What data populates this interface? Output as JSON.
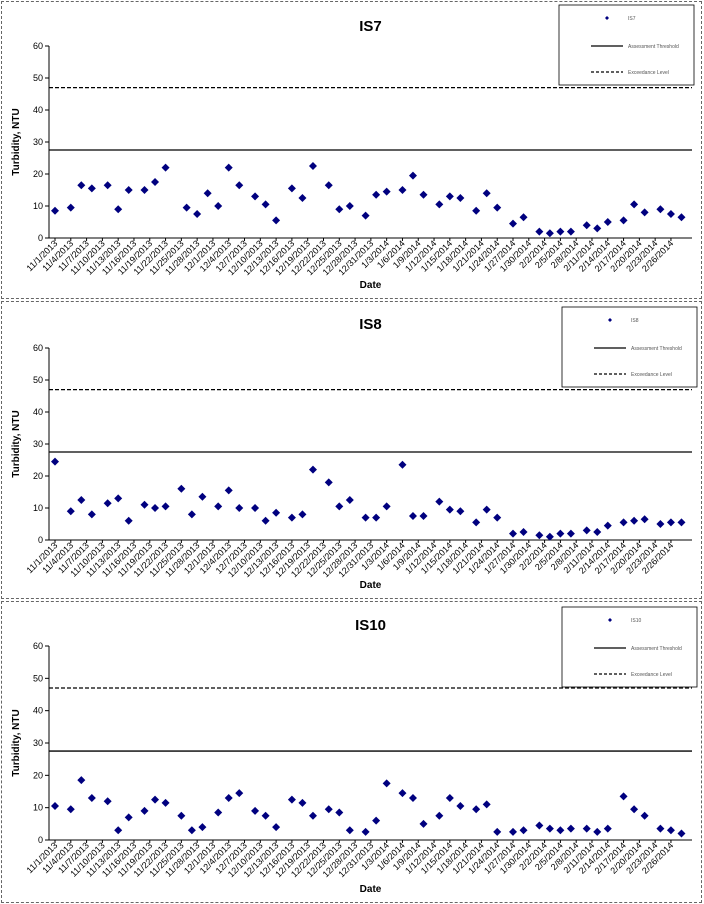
{
  "colors": {
    "marker": "#00007f",
    "line": "#000000",
    "border": "#666666"
  },
  "chart_data": [
    {
      "type": "scatter",
      "title": "IS7",
      "xlabel": "Date",
      "ylabel": "Turbidity, NTU",
      "ylim": [
        0,
        60
      ],
      "yticks": [
        0,
        10,
        20,
        30,
        40,
        50,
        60
      ],
      "xlim": [
        "2013-11-01",
        "2014-03-02"
      ],
      "xtick_labels": [
        "11/1/2013",
        "11/4/2013",
        "11/7/2013",
        "11/10/2013",
        "11/13/2013",
        "11/16/2013",
        "11/19/2013",
        "11/22/2013",
        "11/25/2013",
        "11/28/2013",
        "12/1/2013",
        "12/4/2013",
        "12/7/2013",
        "12/10/2013",
        "12/13/2013",
        "12/16/2013",
        "12/19/2013",
        "12/22/2013",
        "12/25/2013",
        "12/28/2013",
        "12/31/2013",
        "1/3/2014",
        "1/6/2014",
        "1/9/2014",
        "1/12/2014",
        "1/15/2014",
        "1/18/2014",
        "1/21/2014",
        "1/24/2014",
        "1/27/2014",
        "1/30/2014",
        "2/2/2014",
        "2/5/2014",
        "2/8/2014",
        "2/11/2014",
        "2/14/2014",
        "2/17/2014",
        "2/20/2014",
        "2/23/2014",
        "2/26/2014"
      ],
      "grid": false,
      "legend_position": "top-right",
      "legend": [
        "IS7",
        "Assessment Threshold",
        "Exceedance Level"
      ],
      "series": [
        {
          "name": "IS7",
          "style": "marker",
          "points": [
            [
              "11/1/2013",
              8.5
            ],
            [
              "11/4/2013",
              9.5
            ],
            [
              "11/6/2013",
              16.5
            ],
            [
              "11/8/2013",
              15.5
            ],
            [
              "11/11/2013",
              16.5
            ],
            [
              "11/13/2013",
              9
            ],
            [
              "11/15/2013",
              15
            ],
            [
              "11/18/2013",
              15
            ],
            [
              "11/20/2013",
              17.5
            ],
            [
              "11/22/2013",
              22
            ],
            [
              "11/26/2013",
              9.5
            ],
            [
              "11/28/2013",
              7.5
            ],
            [
              "11/30/2013",
              14
            ],
            [
              "12/2/2013",
              10
            ],
            [
              "12/4/2013",
              22
            ],
            [
              "12/6/2013",
              16.5
            ],
            [
              "12/9/2013",
              13
            ],
            [
              "12/11/2013",
              10.5
            ],
            [
              "12/13/2013",
              5.5
            ],
            [
              "12/16/2013",
              15.5
            ],
            [
              "12/18/2013",
              12.5
            ],
            [
              "12/20/2013",
              22.5
            ],
            [
              "12/23/2013",
              16.5
            ],
            [
              "12/25/2013",
              9
            ],
            [
              "12/27/2013",
              10
            ],
            [
              "12/30/2013",
              7
            ],
            [
              "1/1/2014",
              13.5
            ],
            [
              "1/3/2014",
              14.5
            ],
            [
              "1/6/2014",
              15
            ],
            [
              "1/8/2014",
              19.5
            ],
            [
              "1/10/2014",
              13.5
            ],
            [
              "1/13/2014",
              10.5
            ],
            [
              "1/15/2014",
              13
            ],
            [
              "1/17/2014",
              12.5
            ],
            [
              "1/20/2014",
              8.5
            ],
            [
              "1/22/2014",
              14
            ],
            [
              "1/24/2014",
              9.5
            ],
            [
              "1/27/2014",
              4.5
            ],
            [
              "1/29/2014",
              6.5
            ],
            [
              "2/1/2014",
              2
            ],
            [
              "2/3/2014",
              1.5
            ],
            [
              "2/5/2014",
              2
            ],
            [
              "2/7/2014",
              2
            ],
            [
              "2/10/2014",
              4
            ],
            [
              "2/12/2014",
              3
            ],
            [
              "2/14/2014",
              5
            ],
            [
              "2/17/2014",
              5.5
            ],
            [
              "2/19/2014",
              10.5
            ],
            [
              "2/21/2014",
              8
            ],
            [
              "2/24/2014",
              9
            ],
            [
              "2/26/2014",
              7.5
            ],
            [
              "2/28/2014",
              6.5
            ]
          ]
        },
        {
          "name": "Assessment Threshold",
          "style": "solid",
          "value": 27.5
        },
        {
          "name": "Exceedance Level",
          "style": "dashed",
          "value": 47
        }
      ]
    },
    {
      "type": "scatter",
      "title": "IS8",
      "xlabel": "Date",
      "ylabel": "Turbidity, NTU",
      "ylim": [
        0,
        60
      ],
      "yticks": [
        0,
        10,
        20,
        30,
        40,
        50,
        60
      ],
      "xlim": [
        "2013-11-01",
        "2014-03-02"
      ],
      "xtick_labels": [
        "11/1/2013",
        "11/4/2013",
        "11/7/2013",
        "11/10/2013",
        "11/13/2013",
        "11/16/2013",
        "11/19/2013",
        "11/22/2013",
        "11/25/2013",
        "11/28/2013",
        "12/1/2013",
        "12/4/2013",
        "12/7/2013",
        "12/10/2013",
        "12/13/2013",
        "12/16/2013",
        "12/19/2013",
        "12/22/2013",
        "12/25/2013",
        "12/28/2013",
        "12/31/2013",
        "1/3/2014",
        "1/6/2014",
        "1/9/2014",
        "1/12/2014",
        "1/15/2014",
        "1/18/2014",
        "1/21/2014",
        "1/24/2014",
        "1/27/2014",
        "1/30/2014",
        "2/2/2014",
        "2/5/2014",
        "2/8/2014",
        "2/11/2014",
        "2/14/2014",
        "2/17/2014",
        "2/20/2014",
        "2/23/2014",
        "2/26/2014"
      ],
      "grid": false,
      "legend_position": "top-right",
      "legend": [
        "IS8",
        "Assessment Threshold",
        "Exceedance Level"
      ],
      "series": [
        {
          "name": "IS8",
          "style": "marker",
          "points": [
            [
              "11/1/2013",
              24.5
            ],
            [
              "11/4/2013",
              9
            ],
            [
              "11/6/2013",
              12.5
            ],
            [
              "11/8/2013",
              8
            ],
            [
              "11/11/2013",
              11.5
            ],
            [
              "11/13/2013",
              13
            ],
            [
              "11/15/2013",
              6
            ],
            [
              "11/18/2013",
              11
            ],
            [
              "11/20/2013",
              10
            ],
            [
              "11/22/2013",
              10.5
            ],
            [
              "11/25/2013",
              16
            ],
            [
              "11/27/2013",
              8
            ],
            [
              "11/29/2013",
              13.5
            ],
            [
              "12/2/2013",
              10.5
            ],
            [
              "12/4/2013",
              15.5
            ],
            [
              "12/6/2013",
              10
            ],
            [
              "12/9/2013",
              10
            ],
            [
              "12/11/2013",
              6
            ],
            [
              "12/13/2013",
              8.5
            ],
            [
              "12/16/2013",
              7
            ],
            [
              "12/18/2013",
              8
            ],
            [
              "12/20/2013",
              22
            ],
            [
              "12/23/2013",
              18
            ],
            [
              "12/25/2013",
              10.5
            ],
            [
              "12/27/2013",
              12.5
            ],
            [
              "12/30/2013",
              7
            ],
            [
              "1/1/2014",
              7
            ],
            [
              "1/3/2014",
              10.5
            ],
            [
              "1/6/2014",
              23.5
            ],
            [
              "1/8/2014",
              7.5
            ],
            [
              "1/10/2014",
              7.5
            ],
            [
              "1/13/2014",
              12
            ],
            [
              "1/15/2014",
              9.5
            ],
            [
              "1/17/2014",
              9
            ],
            [
              "1/20/2014",
              5.5
            ],
            [
              "1/22/2014",
              9.5
            ],
            [
              "1/24/2014",
              7
            ],
            [
              "1/27/2014",
              2
            ],
            [
              "1/29/2014",
              2.5
            ],
            [
              "2/1/2014",
              1.5
            ],
            [
              "2/3/2014",
              1
            ],
            [
              "2/5/2014",
              2
            ],
            [
              "2/7/2014",
              2
            ],
            [
              "2/10/2014",
              3
            ],
            [
              "2/12/2014",
              2.5
            ],
            [
              "2/14/2014",
              4.5
            ],
            [
              "2/17/2014",
              5.5
            ],
            [
              "2/19/2014",
              6
            ],
            [
              "2/21/2014",
              6.5
            ],
            [
              "2/24/2014",
              5
            ],
            [
              "2/26/2014",
              5.5
            ],
            [
              "2/28/2014",
              5.5
            ]
          ]
        },
        {
          "name": "Assessment Threshold",
          "style": "solid",
          "value": 27.5
        },
        {
          "name": "Exceedance Level",
          "style": "dashed",
          "value": 47
        }
      ]
    },
    {
      "type": "scatter",
      "title": "IS10",
      "xlabel": "Date",
      "ylabel": "Turbidity, NTU",
      "ylim": [
        0,
        60
      ],
      "yticks": [
        0,
        10,
        20,
        30,
        40,
        50,
        60
      ],
      "xlim": [
        "2013-11-01",
        "2014-03-02"
      ],
      "xtick_labels": [
        "11/1/2013",
        "11/4/2013",
        "11/7/2013",
        "11/10/2013",
        "11/13/2013",
        "11/16/2013",
        "11/19/2013",
        "11/22/2013",
        "11/25/2013",
        "11/28/2013",
        "12/1/2013",
        "12/4/2013",
        "12/7/2013",
        "12/10/2013",
        "12/13/2013",
        "12/16/2013",
        "12/19/2013",
        "12/22/2013",
        "12/25/2013",
        "12/28/2013",
        "12/31/2013",
        "1/3/2014",
        "1/6/2014",
        "1/9/2014",
        "1/12/2014",
        "1/15/2014",
        "1/18/2014",
        "1/21/2014",
        "1/24/2014",
        "1/27/2014",
        "1/30/2014",
        "2/2/2014",
        "2/5/2014",
        "2/8/2014",
        "2/11/2014",
        "2/14/2014",
        "2/17/2014",
        "2/20/2014",
        "2/23/2014",
        "2/26/2014"
      ],
      "grid": false,
      "legend_position": "top-right",
      "legend": [
        "IS10",
        "Assessment Threshold",
        "Exceedance Level"
      ],
      "series": [
        {
          "name": "IS10",
          "style": "marker",
          "points": [
            [
              "11/1/2013",
              10.5
            ],
            [
              "11/4/2013",
              9.5
            ],
            [
              "11/6/2013",
              18.5
            ],
            [
              "11/8/2013",
              13
            ],
            [
              "11/11/2013",
              12
            ],
            [
              "11/13/2013",
              3
            ],
            [
              "11/15/2013",
              7
            ],
            [
              "11/18/2013",
              9
            ],
            [
              "11/20/2013",
              12.5
            ],
            [
              "11/22/2013",
              11.5
            ],
            [
              "11/25/2013",
              7.5
            ],
            [
              "11/27/2013",
              3
            ],
            [
              "11/29/2013",
              4
            ],
            [
              "12/2/2013",
              8.5
            ],
            [
              "12/4/2013",
              13
            ],
            [
              "12/6/2013",
              14.5
            ],
            [
              "12/9/2013",
              9
            ],
            [
              "12/11/2013",
              7.5
            ],
            [
              "12/13/2013",
              4
            ],
            [
              "12/16/2013",
              12.5
            ],
            [
              "12/18/2013",
              11.5
            ],
            [
              "12/20/2013",
              7.5
            ],
            [
              "12/23/2013",
              9.5
            ],
            [
              "12/25/2013",
              8.5
            ],
            [
              "12/27/2013",
              3
            ],
            [
              "12/30/2013",
              2.5
            ],
            [
              "1/1/2014",
              6
            ],
            [
              "1/3/2014",
              17.5
            ],
            [
              "1/6/2014",
              14.5
            ],
            [
              "1/8/2014",
              13
            ],
            [
              "1/10/2014",
              5
            ],
            [
              "1/13/2014",
              7.5
            ],
            [
              "1/15/2014",
              13
            ],
            [
              "1/17/2014",
              10.5
            ],
            [
              "1/20/2014",
              9.5
            ],
            [
              "1/22/2014",
              11
            ],
            [
              "1/24/2014",
              2.5
            ],
            [
              "1/27/2014",
              2.5
            ],
            [
              "1/29/2014",
              3
            ],
            [
              "2/1/2014",
              4.5
            ],
            [
              "2/3/2014",
              3.5
            ],
            [
              "2/5/2014",
              3
            ],
            [
              "2/7/2014",
              3.5
            ],
            [
              "2/10/2014",
              3.5
            ],
            [
              "2/12/2014",
              2.5
            ],
            [
              "2/14/2014",
              3.5
            ],
            [
              "2/17/2014",
              13.5
            ],
            [
              "2/19/2014",
              9.5
            ],
            [
              "2/21/2014",
              7.5
            ],
            [
              "2/24/2014",
              3.5
            ],
            [
              "2/26/2014",
              3
            ],
            [
              "2/28/2014",
              2
            ]
          ]
        },
        {
          "name": "Assessment Threshold",
          "style": "solid",
          "value": 27.5
        },
        {
          "name": "Exceedance Level",
          "style": "dashed",
          "value": 47
        }
      ]
    }
  ]
}
